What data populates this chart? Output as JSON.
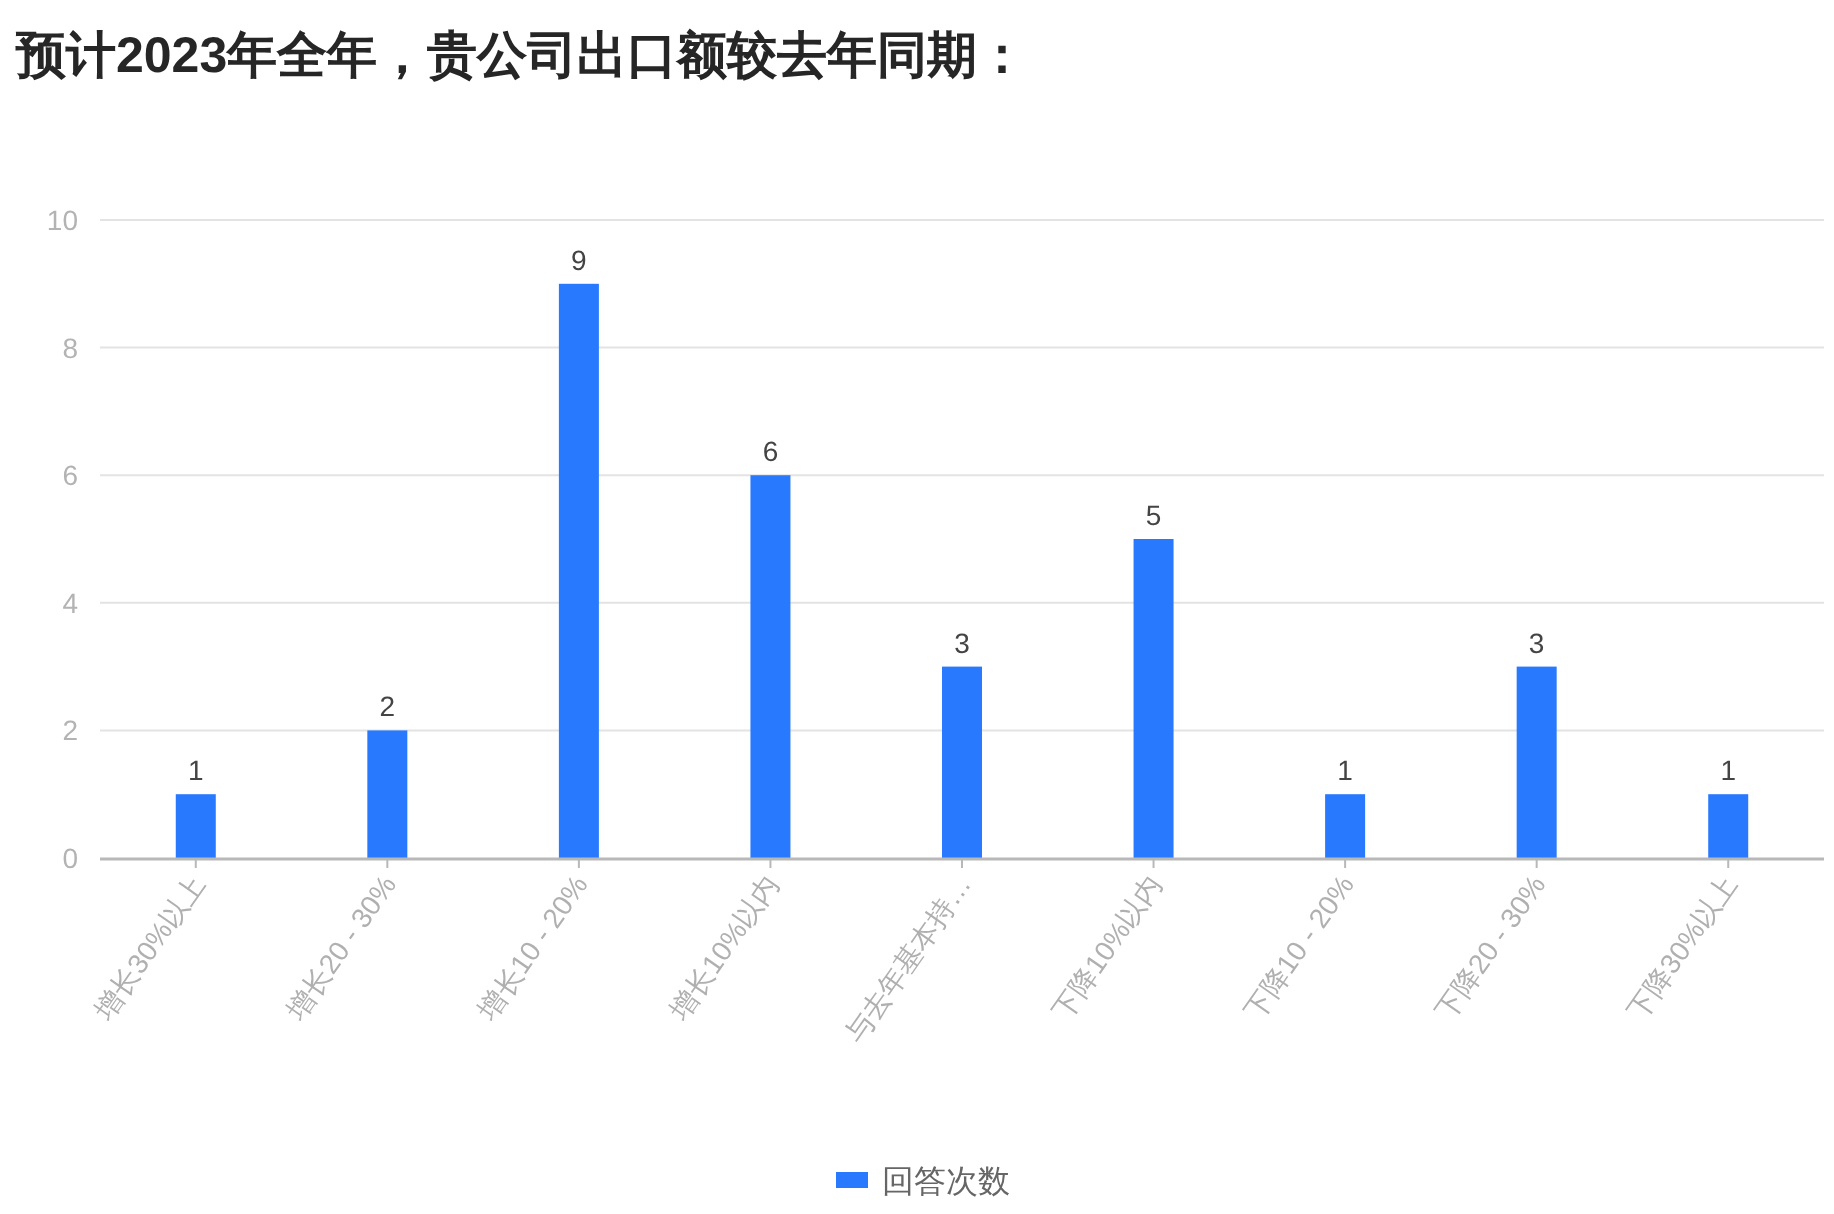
{
  "chart_data": {
    "type": "bar",
    "title": "预计2023年全年，贵公司出口额较去年同期：",
    "categories": [
      "增长30%以上",
      "增长20 - 30%",
      "增长10 - 20%",
      "增长10%以内",
      "与去年基本持…",
      "下降10%以内",
      "下降10 - 20%",
      "下降20 - 30%",
      "下降30%以上"
    ],
    "series": [
      {
        "name": "回答次数",
        "color": "#2979ff",
        "values": [
          1,
          2,
          9,
          6,
          3,
          5,
          1,
          3,
          1
        ]
      }
    ],
    "ylim": [
      0,
      10
    ],
    "yticks": [
      0,
      2,
      4,
      6,
      8,
      10
    ],
    "grid": "y",
    "legend": "bottom",
    "data_labels": true
  }
}
